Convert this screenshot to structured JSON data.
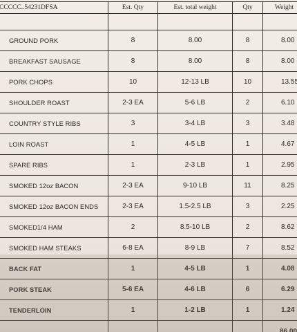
{
  "header": {
    "item": "CCCCC..54231DFSA",
    "est_qty": "Est. Qty",
    "est_total_weight": "Est. total weight",
    "qty": "Qty",
    "weight": "Weight"
  },
  "rows": [
    {
      "item": "GROUND PORK",
      "est_qty": "8",
      "est_weight": "8.00",
      "qty": "8",
      "weight": "8.00"
    },
    {
      "item": "BREAKFAST SAUSAGE",
      "est_qty": "8",
      "est_weight": "8.00",
      "qty": "8",
      "weight": "8.00"
    },
    {
      "item": "PORK CHOPS",
      "est_qty": "10",
      "est_weight": "12-13 LB",
      "qty": "10",
      "weight": "13.55"
    },
    {
      "item": "SHOULDER ROAST",
      "est_qty": "2-3 EA",
      "est_weight": "5-6 LB",
      "qty": "2",
      "weight": "6.10"
    },
    {
      "item": "COUNTRY STYLE RIBS",
      "est_qty": "3",
      "est_weight": "3-4 LB",
      "qty": "3",
      "weight": "3.48"
    },
    {
      "item": "LOIN ROAST",
      "est_qty": "1",
      "est_weight": "4-5 LB",
      "qty": "1",
      "weight": "4.67"
    },
    {
      "item": "SPARE RIBS",
      "est_qty": "1",
      "est_weight": "2-3 LB",
      "qty": "1",
      "weight": "2.95"
    },
    {
      "item": "SMOKED 12oz BACON",
      "est_qty": "2-3 EA",
      "est_weight": "9-10 LB",
      "qty": "11",
      "weight": "8.25"
    },
    {
      "item": "SMOKED 12oz BACON ENDS",
      "est_qty": "2-3 EA",
      "est_weight": "1.5-2.5 LB",
      "qty": "3",
      "weight": "2.25"
    },
    {
      "item": "SMOKED1/4 HAM",
      "est_qty": "2",
      "est_weight": "8.5-10 LB",
      "qty": "2",
      "weight": "8.62"
    },
    {
      "item": "SMOKED HAM STEAKS",
      "est_qty": "6-8 EA",
      "est_weight": "8-9 LB",
      "qty": "7",
      "weight": "8.52"
    },
    {
      "item": "BACK FAT",
      "est_qty": "1",
      "est_weight": "4-5 LB",
      "qty": "1",
      "weight": "4.08"
    },
    {
      "item": "PORK STEAK",
      "est_qty": "5-6 EA",
      "est_weight": "4-6 LB",
      "qty": "6",
      "weight": "6.29"
    },
    {
      "item": "TENDERLOIN",
      "est_qty": "1",
      "est_weight": "1-2 LB",
      "qty": "1",
      "weight": "1.24"
    }
  ],
  "total": {
    "weight": "86.00"
  }
}
